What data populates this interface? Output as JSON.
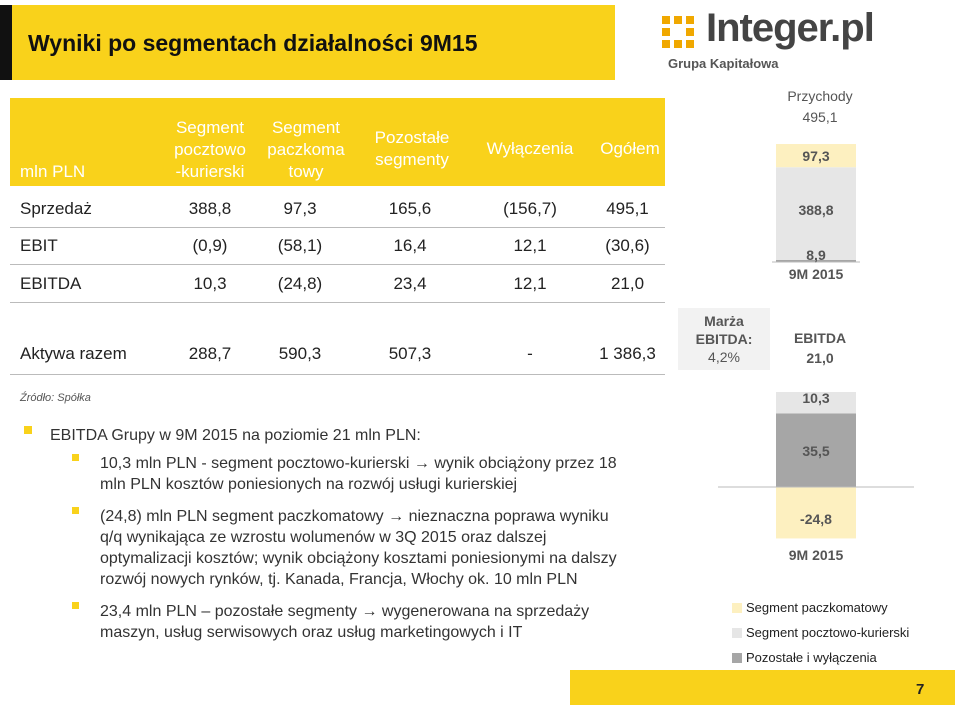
{
  "title": "Wyniki po segmentach działalności 9M15",
  "logo": {
    "name": "Integer.pl",
    "subtitle": "Grupa Kapitałowa"
  },
  "table": {
    "headers": [
      "mln PLN",
      "Segment pocztowo -kurierski",
      "Segment paczkoma towy",
      "Pozostałe segmenty",
      "Wyłączenia",
      "Ogółem"
    ],
    "header_lines": [
      [
        "mln PLN"
      ],
      [
        "Segment",
        "pocztowo",
        "-kurierski"
      ],
      [
        "Segment",
        "paczkoma",
        "towy"
      ],
      [
        "Pozostałe",
        "segmenty"
      ],
      [
        "Wyłączenia"
      ],
      [
        "Ogółem"
      ]
    ],
    "rows": [
      {
        "label": "Sprzedaż",
        "values": [
          "388,8",
          "97,3",
          "165,6",
          "(156,7)",
          "495,1"
        ]
      },
      {
        "label": "EBIT",
        "values": [
          "(0,9)",
          "(58,1)",
          "16,4",
          "12,1",
          "(30,6)"
        ]
      },
      {
        "label": "EBITDA",
        "values": [
          "10,3",
          "(24,8)",
          "23,4",
          "12,1",
          "21,0"
        ]
      },
      {
        "label": "Aktywa razem",
        "values": [
          "288,7",
          "590,3",
          "507,3",
          "-",
          "1 386,3"
        ]
      }
    ]
  },
  "source_note": "Źródło: Spółka",
  "bullets": {
    "main": "EBITDA Grupy w 9M 2015 na poziomie 21 mln PLN:",
    "items": [
      [
        "10,3 mln PLN - segment pocztowo-kurierski → wynik obciążony przez 18",
        "mln PLN kosztów poniesionych na rozwój usługi kurierskiej"
      ],
      [
        "(24,8) mln PLN  segment paczkomatowy → nieznaczna poprawa wyniku",
        "q/q wynikająca ze wzrostu wolumenów w 3Q 2015 oraz dalszej",
        "optymalizacji kosztów; wynik obciążony kosztami  poniesionymi na dalszy",
        "rozwój nowych rynków, tj. Kanada, Francja, Włochy ok. 10 mln PLN"
      ],
      [
        "23,4 mln PLN – pozostałe segmenty → wygenerowana na sprzedaży",
        "maszyn, usług serwisowych oraz usług marketingowych i IT"
      ]
    ]
  },
  "margin_box": {
    "line1": "Marża",
    "line2": "EBITDA:",
    "line3": "4,2%"
  },
  "chart_data": [
    {
      "type": "bar",
      "stacked": true,
      "title": "Przychody",
      "total_label": "495,1",
      "categories": [
        "9M 2015"
      ],
      "series": [
        {
          "name": "Segment pocztowo-kurierski",
          "values": [
            388.8
          ],
          "label": "388,8"
        },
        {
          "name": "Segment paczkomatowy",
          "values": [
            97.3
          ],
          "label": "97,3"
        },
        {
          "name": "Pozostałe i wyłączenia",
          "values": [
            8.9
          ],
          "label": "8,9"
        }
      ]
    },
    {
      "type": "bar",
      "stacked": true,
      "title": "EBITDA",
      "total_label": "21,0",
      "categories": [
        "9M 2015"
      ],
      "series": [
        {
          "name": "Segment pocztowo-kurierski",
          "values": [
            10.3
          ],
          "label": "10,3"
        },
        {
          "name": "Pozostałe i wyłączenia",
          "values": [
            35.5
          ],
          "label": "35,5"
        },
        {
          "name": "Segment paczkomatowy",
          "values": [
            -24.8
          ],
          "label": "-24,8"
        }
      ]
    }
  ],
  "legend": [
    {
      "label": "Segment paczkomatowy",
      "color": "#fdf0c0"
    },
    {
      "label": "Segment pocztowo-kurierski",
      "color": "#e6e6e6"
    },
    {
      "label": "Pozostałe i wyłączenia",
      "color": "#a6a6a6"
    }
  ],
  "colors": {
    "accent": "#f9d21b",
    "dark": "#111111"
  },
  "page_number": "7"
}
